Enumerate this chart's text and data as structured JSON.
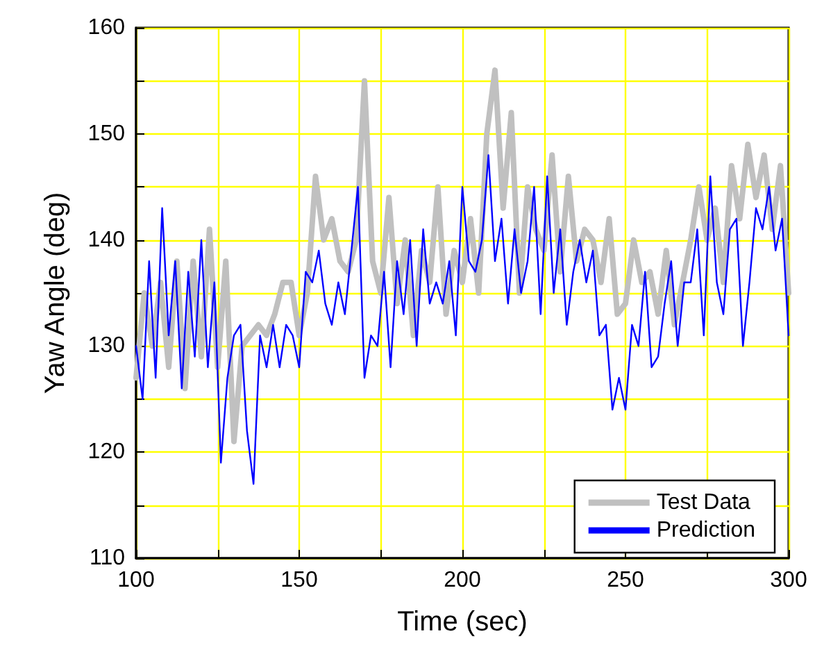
{
  "chart_data": {
    "type": "line",
    "xlabel": "Time (sec)",
    "ylabel": "Yaw Angle (deg)",
    "xlim": [
      100,
      300
    ],
    "xticks": [
      100,
      {
        "value": 125,
        "label": null
      },
      150,
      {
        "value": 175,
        "label": null
      },
      200,
      {
        "value": 225,
        "label": null
      },
      250,
      {
        "value": 275,
        "label": null
      },
      300
    ],
    "ylim": [
      110,
      160
    ],
    "yticks": [
      110,
      {
        "value": 115,
        "label": null
      },
      120,
      {
        "value": 125,
        "label": null
      },
      130,
      {
        "value": 135,
        "label": null
      },
      140,
      {
        "value": 145,
        "label": null
      },
      150,
      {
        "value": 155,
        "label": null
      },
      160
    ],
    "grid": true,
    "legend": "bottom right",
    "marker": "none",
    "series": [
      {
        "name": "Test Data",
        "color": "#c0c0c0",
        "x": [
          100,
          102.5,
          105,
          107.5,
          110,
          112.5,
          115,
          117.5,
          120,
          122.5,
          125,
          127.5,
          130,
          132.5,
          135,
          137.5,
          140,
          142.5,
          145,
          147.5,
          150,
          152.5,
          155,
          157.5,
          160,
          162.5,
          165,
          167.5,
          170,
          172.5,
          175,
          177.5,
          180,
          182.5,
          185,
          187.5,
          190,
          192.5,
          195,
          197.5,
          200,
          202.5,
          205,
          207.5,
          210,
          212.5,
          215,
          217.5,
          220,
          222.5,
          225,
          227.5,
          230,
          232.5,
          235,
          237.5,
          240,
          242.5,
          245,
          247.5,
          250,
          252.5,
          255,
          257.5,
          260,
          262.5,
          265,
          267.5,
          270,
          272.5,
          275,
          277.5,
          280,
          282.5,
          285,
          287.5,
          290,
          292.5,
          295,
          297.5,
          300
        ],
        "values": [
          127,
          135,
          130,
          136,
          128,
          138,
          126,
          138,
          129,
          141,
          128,
          138,
          121,
          130,
          131,
          132,
          131,
          133,
          136,
          136,
          131,
          135,
          146,
          140,
          142,
          138,
          137,
          140,
          155,
          138,
          135,
          144,
          134,
          140,
          131,
          139,
          136,
          145,
          133,
          139,
          136,
          142,
          135,
          150,
          156,
          143,
          152,
          135,
          145,
          141,
          139,
          148,
          137,
          146,
          138,
          141,
          140,
          136,
          142,
          133,
          134,
          140,
          136,
          137,
          133,
          139,
          132,
          136,
          140,
          145,
          140,
          143,
          136,
          147,
          142,
          149,
          144,
          148,
          141,
          147,
          135
        ]
      },
      {
        "name": "Prediction",
        "color": "#0000ff",
        "x": [
          100,
          102,
          104,
          106,
          108,
          110,
          112,
          114,
          116,
          118,
          120,
          122,
          124,
          126,
          128,
          130,
          132,
          134,
          136,
          138,
          140,
          142,
          144,
          146,
          148,
          150,
          152,
          154,
          156,
          158,
          160,
          162,
          164,
          166,
          168,
          170,
          172,
          174,
          176,
          178,
          180,
          182,
          184,
          186,
          188,
          190,
          192,
          194,
          196,
          198,
          200,
          202,
          204,
          206,
          208,
          210,
          212,
          214,
          216,
          218,
          220,
          222,
          224,
          226,
          228,
          230,
          232,
          234,
          236,
          238,
          240,
          242,
          244,
          246,
          248,
          250,
          252,
          254,
          256,
          258,
          260,
          262,
          264,
          266,
          268,
          270,
          272,
          274,
          276,
          278,
          280,
          282,
          284,
          286,
          288,
          290,
          292,
          294,
          296,
          298,
          300
        ],
        "values": [
          130,
          125,
          138,
          127,
          143,
          131,
          138,
          126,
          137,
          129,
          140,
          128,
          136,
          119,
          127,
          131,
          132,
          122,
          117,
          131,
          128,
          132,
          128,
          132,
          131,
          128,
          137,
          136,
          139,
          134,
          132,
          136,
          133,
          139,
          145,
          127,
          131,
          130,
          137,
          128,
          138,
          133,
          140,
          130,
          141,
          134,
          136,
          134,
          138,
          131,
          145,
          138,
          137,
          140,
          148,
          138,
          142,
          134,
          141,
          135,
          138,
          145,
          133,
          146,
          135,
          141,
          132,
          137,
          140,
          136,
          139,
          131,
          132,
          124,
          127,
          124,
          132,
          130,
          137,
          128,
          129,
          134,
          138,
          130,
          136,
          136,
          141,
          131,
          146,
          136,
          133,
          141,
          142,
          130,
          136,
          143,
          141,
          145,
          139,
          142,
          131
        ]
      }
    ]
  }
}
